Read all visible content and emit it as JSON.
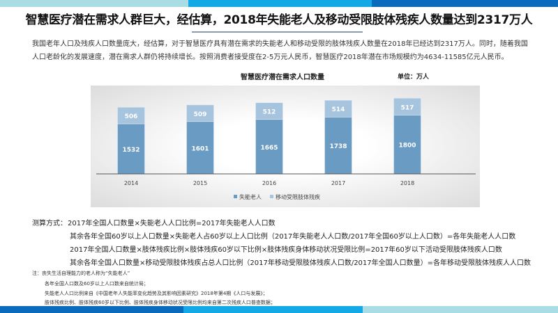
{
  "title": "智慧医疗潜在需求人群巨大，经估算，2018年失能老人及移动受限肢体残疾人数量达到2317万人",
  "intro": "我国老年人口及残疾人口数量庞大，经估算，对于智慧医疗具有潜在需求的失能老人和移动受限的肢体残疾人数量在2018年已经达到2317万人。同时，随着我国人口老龄化的发展速度，潜在需求人群仍将持续增长。按照消费者接受度在2-5万元人民币，智慧医疗2018年潜在市场规模约为4634-11585亿元人民币。",
  "chart_data": {
    "type": "bar",
    "stacked": true,
    "title": "智慧医疗潜在需求人口数量",
    "unit": "单位：万人",
    "categories": [
      "2014",
      "2015",
      "2016",
      "2017",
      "2018"
    ],
    "series": [
      {
        "name": "失能老人",
        "values": [
          1532,
          1601,
          1665,
          1738,
          1800
        ],
        "color": "#6a9bc3"
      },
      {
        "name": "移动受限肢体残疾",
        "values": [
          506,
          509,
          512,
          514,
          517
        ],
        "color": "#a7c4df"
      }
    ],
    "ylim": [
      0,
      2500
    ],
    "legend": "bottom"
  },
  "method": {
    "label": "测算方式：",
    "lines": [
      "2017年全国人口数量×失能老人人口比例=2017年失能老人人口数",
      "其余各年全国60岁以上人口数量×失能老人占60岁以上人口比例（2017年失能老人人口数/2017年全国60岁以上人口数）=各年失能老人人口数",
      "2017年全国人口数量×肢体残疾比例×肢体残疾60岁以下比例×肢体残疾身体移动状况受限比例=2017年60岁以下活动受限肢体残疾人口数",
      "其余各年全国人口数量×移动受限肢体残疾占总人口比例（2017年移动受限肢体残疾人口数/2017年全国人口数量）=各年移动受限肢体残疾人人口数"
    ]
  },
  "notes": [
    "注：丧失生活自理能力的老人称为“失能老人”",
    "各年全国人口数及60岁以上人口数来自统计局；",
    "失能老人人口比例来自《中国老年人失能率变化趋势及其影响因素研究》2018年第4期《人口与发展》；",
    "肢体残疾比例、肢体残疾60岁以下比例、肢体残疾身体移动状况受限比例均来自第二次残疾人口普查数据；"
  ]
}
